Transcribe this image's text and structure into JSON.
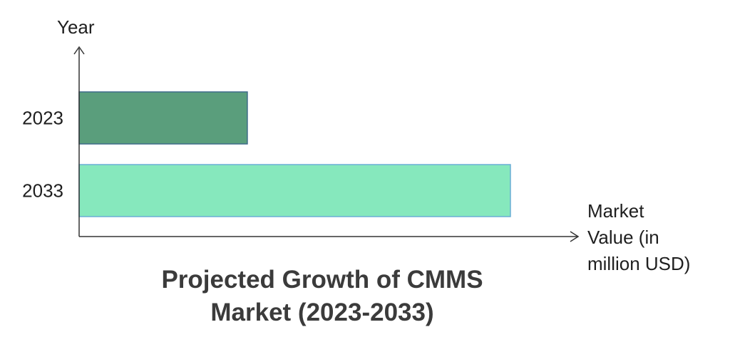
{
  "chart_data": {
    "type": "bar",
    "orientation": "horizontal",
    "title": "Projected Growth of CMMS Market (2023-2033)",
    "title_lines": [
      "Projected Growth of CMMS",
      "Market (2023-2033)"
    ],
    "xlabel": "Market Value (in million USD)",
    "xlabel_lines": [
      "Market",
      "Value (in",
      "million USD)"
    ],
    "ylabel": "Year",
    "categories": [
      "2023",
      "2033"
    ],
    "values": [
      39,
      100
    ],
    "xlim": [
      0,
      100
    ],
    "grid": false,
    "legend": "none",
    "colors": [
      "#5a9e7c",
      "#86e8bd"
    ],
    "edge_colors": [
      "#3f6b89",
      "#6aaed6"
    ]
  }
}
